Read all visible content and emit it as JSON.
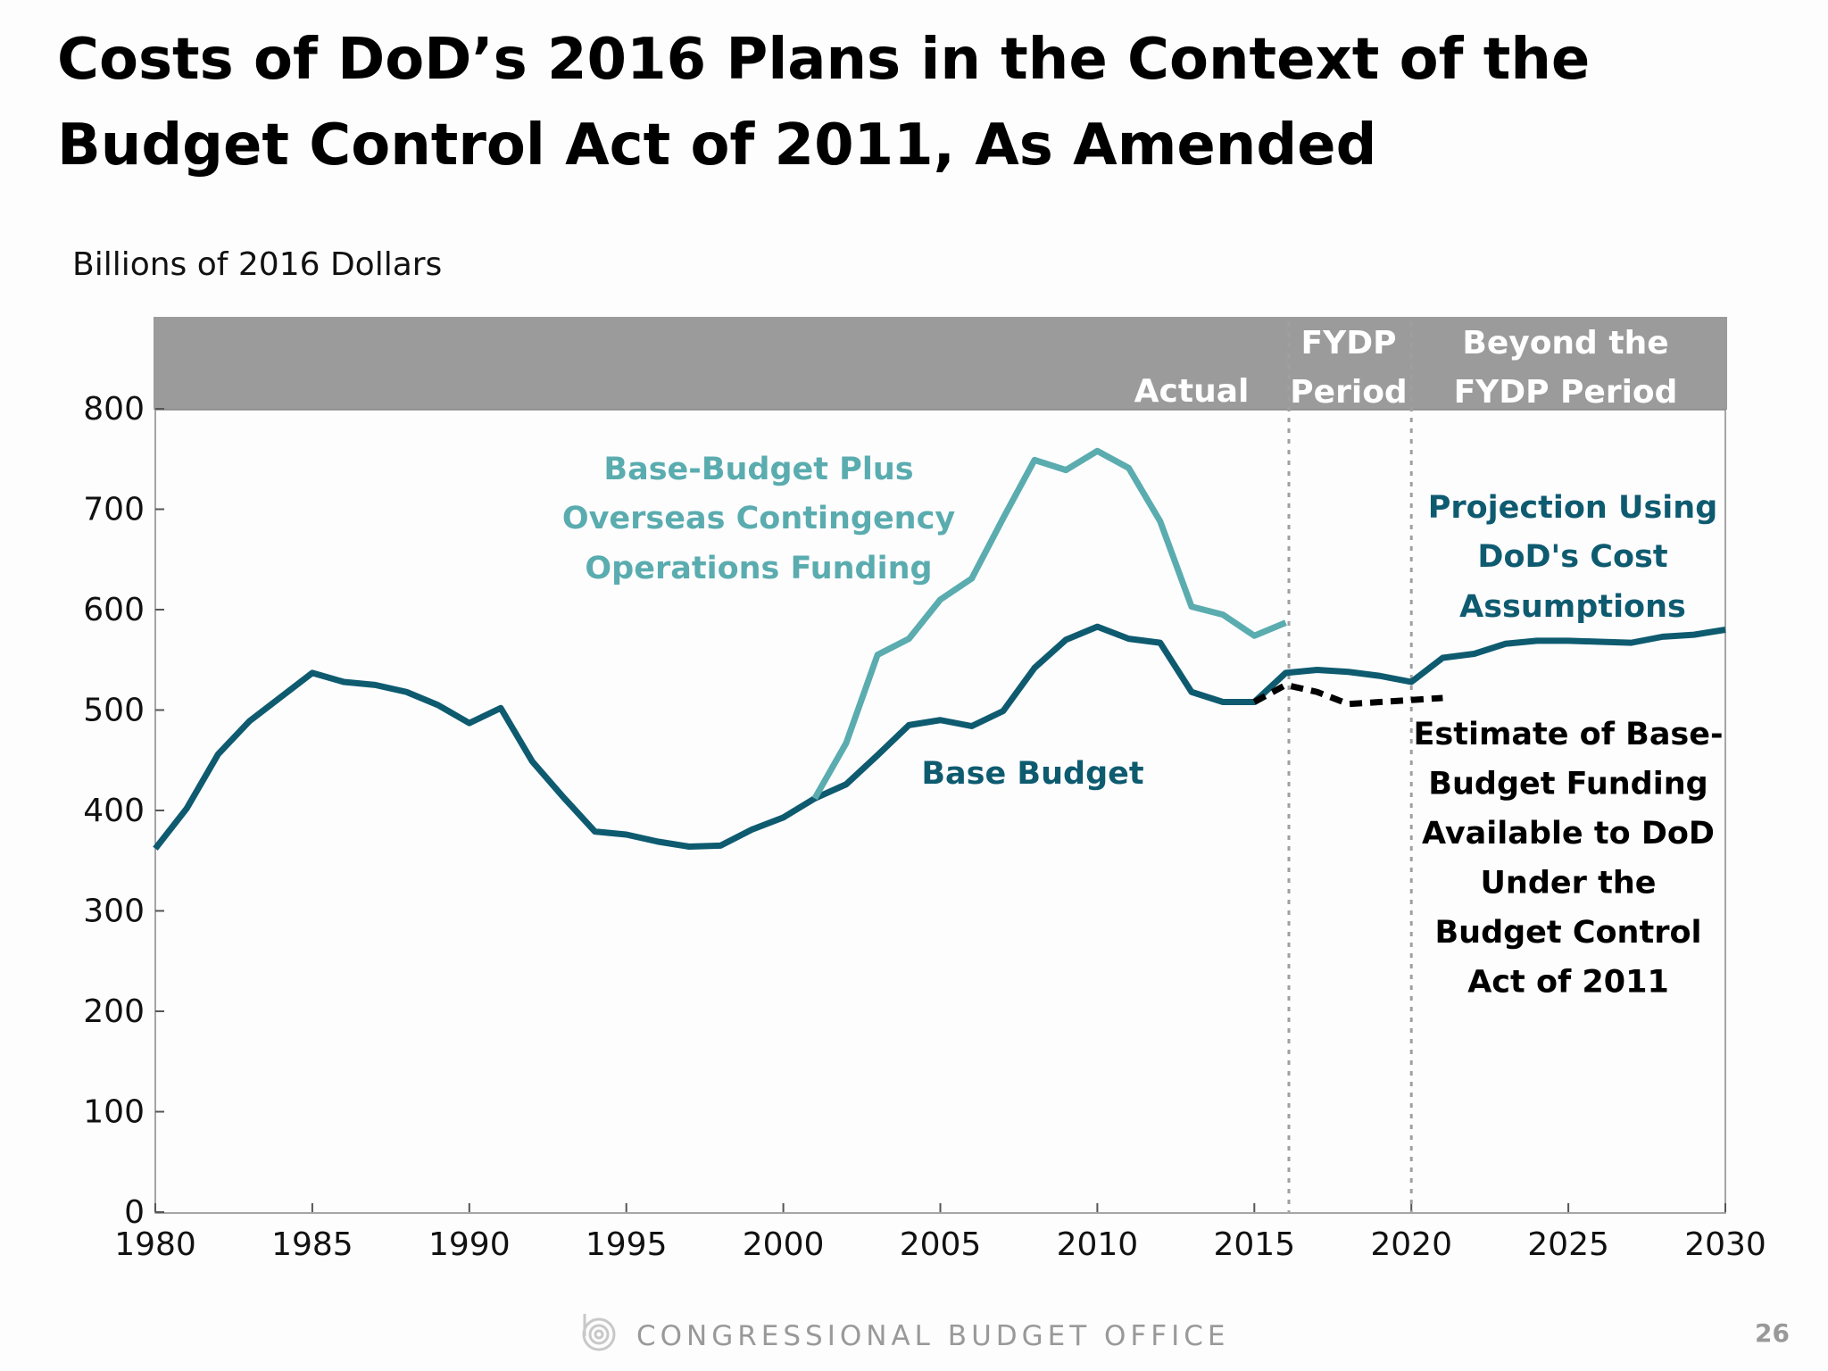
{
  "title_lines": [
    "Costs of DoD’s 2016 Plans in the Context of the",
    "Budget Control Act of 2011, As Amended"
  ],
  "footer": {
    "organization": "CONGRESSIONAL BUDGET OFFICE",
    "page_number": "26",
    "logo_icon": "cbo-logo-icon"
  },
  "colors": {
    "base_budget": "#0e5b70",
    "oco": "#5aacaf",
    "bca": "#000000",
    "band": "#9b9b9b",
    "divider": "#a0a0a0"
  },
  "chart_data": {
    "type": "line",
    "title": "Costs of DoD’s 2016 Plans in the Context of the Budget Control Act of 2011, As Amended",
    "ylabel": "Billions of 2016 Dollars",
    "xlabel": "",
    "xlim": [
      1980,
      2030
    ],
    "ylim": [
      0,
      800
    ],
    "xticks": [
      "1980",
      "1985",
      "1990",
      "1995",
      "2000",
      "2005",
      "2010",
      "2015",
      "2020",
      "2025",
      "2030"
    ],
    "yticks": [
      "0",
      "100",
      "200",
      "300",
      "400",
      "500",
      "600",
      "700",
      "800"
    ],
    "grid": false,
    "periods": [
      {
        "label": "Actual",
        "end": 2016
      },
      {
        "label_lines": [
          "FYDP",
          "Period"
        ],
        "start": 2016,
        "end": 2020
      },
      {
        "label_lines": [
          "Beyond the",
          "FYDP Period"
        ],
        "start": 2020
      }
    ],
    "series": [
      {
        "key": "base_budget",
        "style": "solid",
        "annotations": {
          "actual": [
            "Base Budget"
          ],
          "projection": [
            "Projection Using",
            "DoD's Cost",
            "Assumptions"
          ]
        },
        "x": [
          1980,
          1981,
          1982,
          1983,
          1984,
          1985,
          1986,
          1987,
          1988,
          1989,
          1990,
          1991,
          1992,
          1993,
          1994,
          1995,
          1996,
          1997,
          1998,
          1999,
          2000,
          2001,
          2002,
          2003,
          2004,
          2005,
          2006,
          2007,
          2008,
          2009,
          2010,
          2011,
          2012,
          2013,
          2014,
          2015,
          2016,
          2017,
          2018,
          2019,
          2020,
          2021,
          2022,
          2023,
          2024,
          2025,
          2026,
          2027,
          2028,
          2029,
          2030
        ],
        "values": [
          362,
          402,
          456,
          489,
          513,
          537,
          528,
          525,
          518,
          505,
          487,
          502,
          449,
          413,
          379,
          376,
          369,
          364,
          365,
          381,
          393,
          412,
          426,
          455,
          485,
          490,
          484,
          499,
          542,
          570,
          583,
          571,
          567,
          518,
          508,
          508,
          537,
          540,
          538,
          534,
          528,
          552,
          556,
          566,
          569,
          569,
          568,
          567,
          573,
          575,
          580
        ]
      },
      {
        "key": "oco",
        "style": "solid",
        "annotation": [
          "Base-Budget Plus",
          "Overseas Contingency",
          "Operations Funding"
        ],
        "x": [
          2001,
          2002,
          2003,
          2004,
          2005,
          2006,
          2007,
          2008,
          2009,
          2010,
          2011,
          2012,
          2013,
          2014,
          2015,
          2016
        ],
        "values": [
          412,
          467,
          555,
          571,
          610,
          631,
          691,
          749,
          739,
          758,
          741,
          688,
          603,
          595,
          574,
          587
        ]
      },
      {
        "key": "bca",
        "style": "dotted",
        "annotation": [
          "Estimate of Base-",
          "Budget Funding",
          "Available to DoD",
          "Under the",
          "Budget Control",
          "Act of 2011"
        ],
        "x": [
          2015,
          2016,
          2017,
          2018,
          2019,
          2020,
          2021
        ],
        "values": [
          508,
          525,
          518,
          506,
          508,
          510,
          512
        ]
      }
    ]
  }
}
